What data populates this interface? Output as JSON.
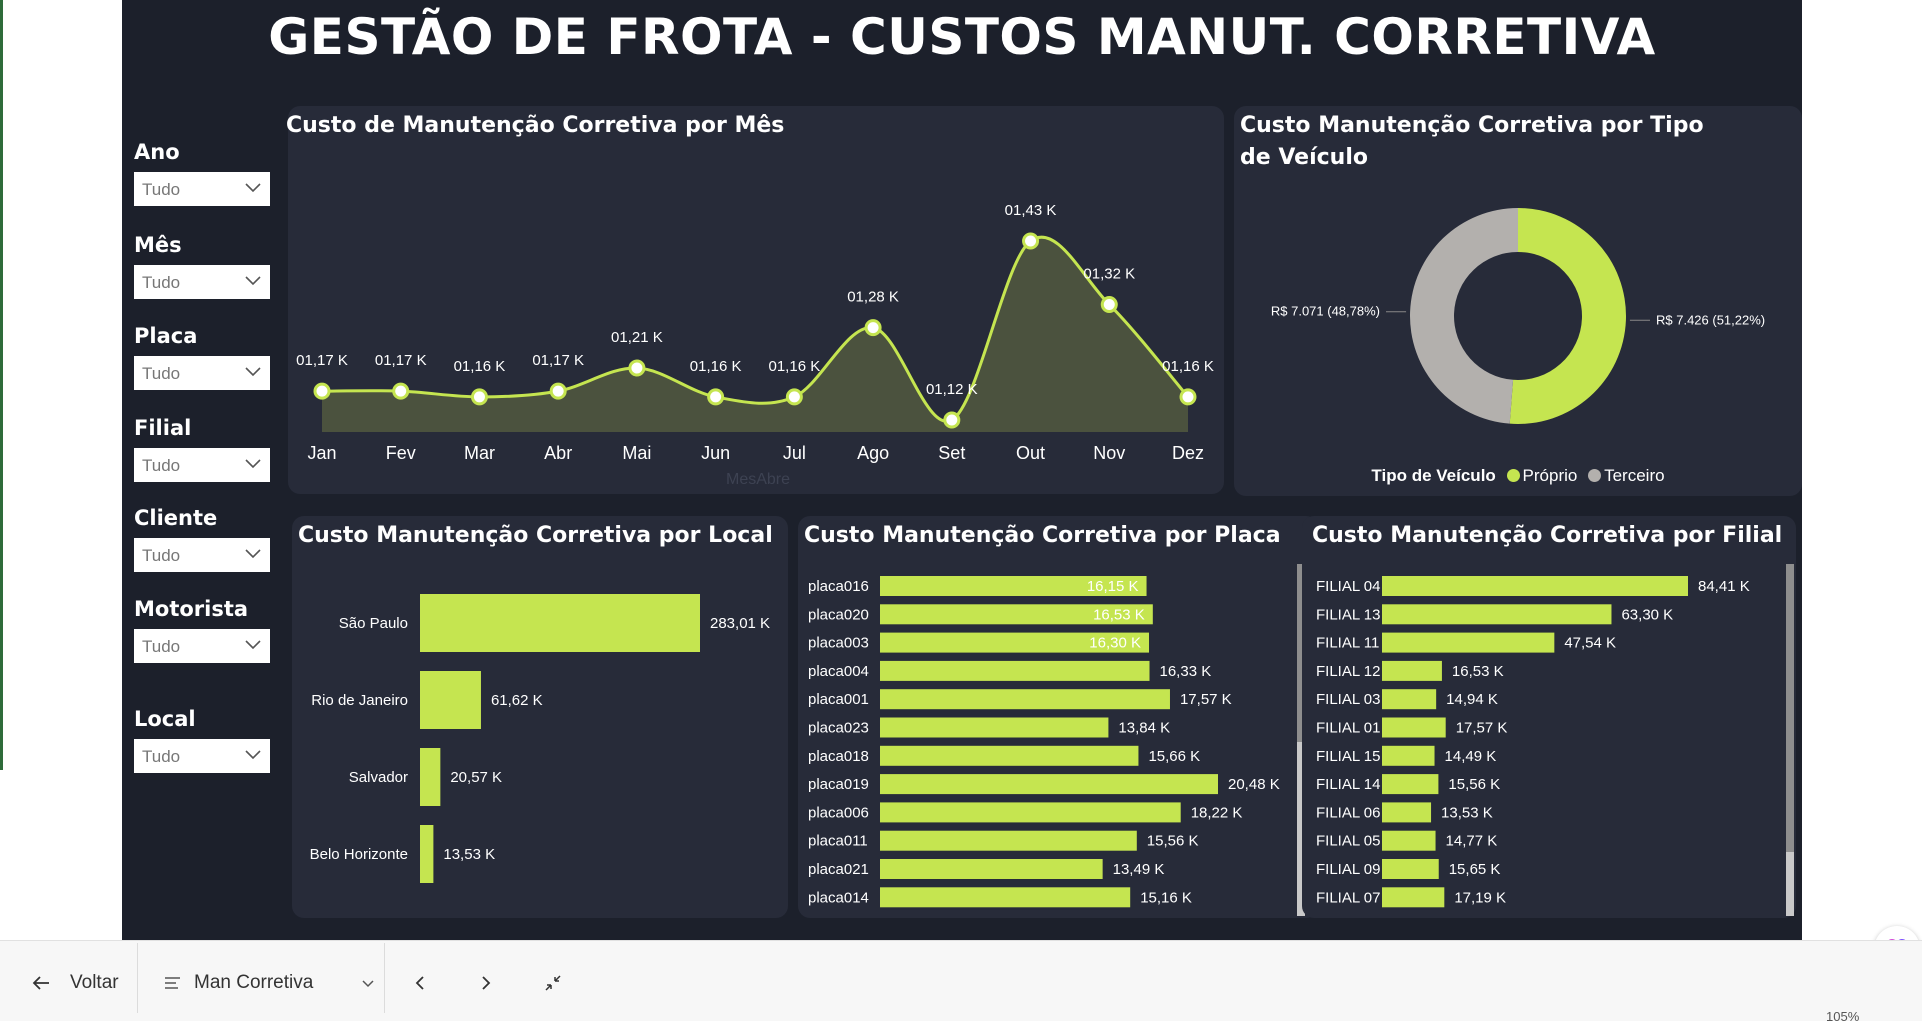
{
  "title": "GESTÃO DE FROTA - CUSTOS MANUT. CORRETIVA",
  "slicers": [
    {
      "label": "Ano",
      "value": "Tudo"
    },
    {
      "label": "Mês",
      "value": "Tudo"
    },
    {
      "label": "Placa",
      "value": "Tudo"
    },
    {
      "label": "Filial",
      "value": "Tudo"
    },
    {
      "label": "Cliente",
      "value": "Tudo"
    },
    {
      "label": "Motorista",
      "value": "Tudo"
    },
    {
      "label": "Local",
      "value": "Tudo"
    }
  ],
  "colors": {
    "accent": "#c5e550",
    "gray": "#b3b0ad",
    "bg": "#1c202b",
    "card": "#272b39"
  },
  "chart_data": [
    {
      "type": "area",
      "title": "Custo de Manutenção Corretiva por Mês",
      "xlabel": "MesAbre",
      "categories": [
        "Jan",
        "Fev",
        "Mar",
        "Abr",
        "Mai",
        "Jun",
        "Jul",
        "Ago",
        "Set",
        "Out",
        "Nov",
        "Dez"
      ],
      "values": [
        1.17,
        1.17,
        1.16,
        1.17,
        1.21,
        1.16,
        1.16,
        1.28,
        1.12,
        1.43,
        1.32,
        1.16
      ],
      "labels": [
        "01,17 K",
        "01,17 K",
        "01,16 K",
        "01,17 K",
        "01,21 K",
        "01,16 K",
        "01,16 K",
        "01,28 K",
        "01,12 K",
        "01,43 K",
        "01,32 K",
        "01,16 K"
      ]
    },
    {
      "type": "pie",
      "title": "Custo Manutenção Corretiva por Tipo de Veículo",
      "legend_title": "Tipo de Veículo",
      "slices": [
        {
          "name": "Próprio",
          "value": 7426,
          "label": "R$ 7.426 (51,22%)",
          "color": "#c5e550"
        },
        {
          "name": "Terceiro",
          "value": 7071,
          "label": "R$ 7.071 (48,78%)",
          "color": "#b3b0ad"
        }
      ]
    },
    {
      "type": "bar",
      "title": "Custo Manutenção Corretiva por Local",
      "categories": [
        "São Paulo",
        "Rio de Janeiro",
        "Salvador",
        "Belo Horizonte"
      ],
      "values": [
        283.01,
        61.62,
        20.57,
        13.53
      ],
      "labels": [
        "283,01 K",
        "61,62 K",
        "20,57 K",
        "13,53 K"
      ]
    },
    {
      "type": "bar",
      "title": "Custo Manutenção Corretiva por Placa",
      "categories": [
        "placa016",
        "placa020",
        "placa003",
        "placa004",
        "placa001",
        "placa023",
        "placa018",
        "placa019",
        "placa006",
        "placa011",
        "placa021",
        "placa014"
      ],
      "values": [
        16.15,
        16.53,
        16.3,
        16.33,
        17.57,
        13.84,
        15.66,
        20.48,
        18.22,
        15.56,
        13.49,
        15.16
      ],
      "labels": [
        "16,15 K",
        "16,53 K",
        "16,30 K",
        "16,33 K",
        "17,57 K",
        "13,84 K",
        "15,66 K",
        "20,48 K",
        "18,22 K",
        "15,56 K",
        "13,49 K",
        "15,16 K"
      ]
    },
    {
      "type": "bar",
      "title": "Custo Manutenção Corretiva por Filial",
      "categories": [
        "FILIAL 04",
        "FILIAL 13",
        "FILIAL 11",
        "FILIAL 12",
        "FILIAL 03",
        "FILIAL 01",
        "FILIAL 15",
        "FILIAL 14",
        "FILIAL 06",
        "FILIAL 05",
        "FILIAL 09",
        "FILIAL 07"
      ],
      "values": [
        84.41,
        63.3,
        47.54,
        16.53,
        14.94,
        17.57,
        14.49,
        15.56,
        13.53,
        14.77,
        15.65,
        17.19
      ],
      "labels": [
        "84,41 K",
        "63,30 K",
        "47,54 K",
        "16,53 K",
        "14,94 K",
        "17,57 K",
        "14,49 K",
        "15,56 K",
        "13,53 K",
        "14,77 K",
        "15,65 K",
        "17,19 K"
      ]
    }
  ],
  "taskbar": {
    "back_label": "Voltar",
    "page_label": "Man Corretiva",
    "zoom": "105%"
  }
}
